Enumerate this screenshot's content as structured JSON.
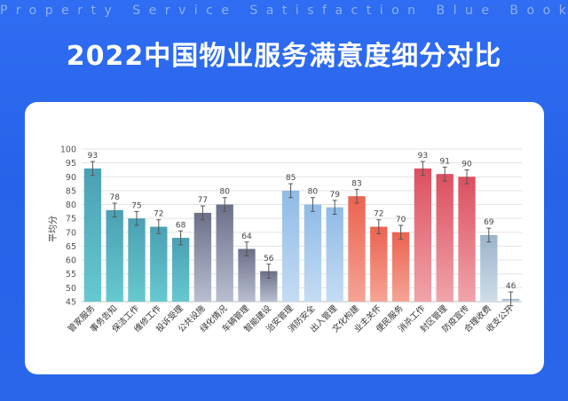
{
  "header": {
    "subtitle": "Property Service Satisfaction Blue Book",
    "title": "2022中国物业服务满意度细分对比"
  },
  "chart_data": {
    "type": "bar",
    "title": "",
    "xlabel": "",
    "ylabel": "平均分",
    "ylim": [
      45,
      100
    ],
    "yticks": [
      45,
      50,
      55,
      60,
      65,
      70,
      75,
      80,
      85,
      90,
      95,
      100
    ],
    "grid": true,
    "error_bars": true,
    "categories": [
      "管家服务",
      "事务告知",
      "保洁工作",
      "维修工作",
      "投诉受理",
      "公共设施",
      "绿化情况",
      "车辆管理",
      "智能建设",
      "治安管理",
      "消防安全",
      "出入管理",
      "文化构建",
      "业主关怀",
      "便民服务",
      "消杀工作",
      "封区管理",
      "防疫宣传",
      "合理收费",
      "收支公开"
    ],
    "values": [
      93,
      78,
      75,
      72,
      68,
      77,
      80,
      64,
      56,
      85,
      80,
      79,
      83,
      72,
      70,
      93,
      91,
      90,
      69,
      46
    ],
    "colors": [
      [
        "#4aa0b3",
        "#66c9cf"
      ],
      [
        "#4aa0b3",
        "#66c9cf"
      ],
      [
        "#4aa0b3",
        "#66c9cf"
      ],
      [
        "#4aa0b3",
        "#66c9cf"
      ],
      [
        "#4aa0b3",
        "#66c9cf"
      ],
      [
        "#6b7089",
        "#b9bfd0"
      ],
      [
        "#6b7089",
        "#b9bfd0"
      ],
      [
        "#6b7089",
        "#b9bfd0"
      ],
      [
        "#6b7089",
        "#b9bfd0"
      ],
      [
        "#8fbbe6",
        "#c5dcf4"
      ],
      [
        "#8fbbe6",
        "#c5dcf4"
      ],
      [
        "#8fbbe6",
        "#c5dcf4"
      ],
      [
        "#ec6250",
        "#f5a495"
      ],
      [
        "#ec6250",
        "#f5a495"
      ],
      [
        "#ec6250",
        "#f5a495"
      ],
      [
        "#dc4f5f",
        "#f0a4aa"
      ],
      [
        "#dc4f5f",
        "#f0a4aa"
      ],
      [
        "#dc4f5f",
        "#f0a4aa"
      ],
      [
        "#9ab4cc",
        "#cfdde9"
      ],
      [
        "#9ab4cc",
        "#cfdde9"
      ]
    ]
  }
}
